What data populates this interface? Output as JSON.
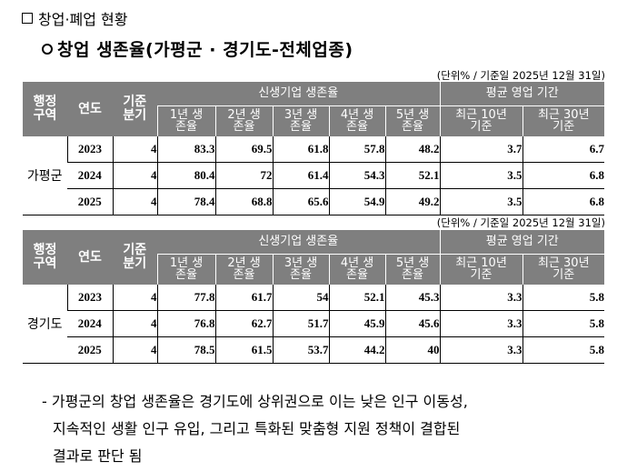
{
  "section_title": "창업·폐업 현황",
  "sub_title": "창업 생존율(가평군 · 경기도-전체업종)",
  "tables": [
    {
      "unit": "(단위% / 기준일 2025년 12월 31일)",
      "headers": {
        "region": "행정\n구역",
        "year": "연도",
        "quarter": "기준\n분기",
        "survival_group": "신생기업 생존율",
        "survival_cols": [
          "1년 생\n존율",
          "2년 생\n존율",
          "3년 생\n존율",
          "4년 생\n존율",
          "5년 생\n존율"
        ],
        "period_group": "평균 영업 기간",
        "period_cols": [
          "최근 10년\n기준",
          "최근 30년\n기준"
        ]
      },
      "region": "가평군",
      "rows": [
        {
          "year": "2023",
          "quarter": "4",
          "s1": "83.3",
          "s2": "69.5",
          "s3": "61.8",
          "s4": "57.8",
          "s5": "48.2",
          "p10": "3.7",
          "p30": "6.7"
        },
        {
          "year": "2024",
          "quarter": "4",
          "s1": "80.4",
          "s2": "72",
          "s3": "61.4",
          "s4": "54.3",
          "s5": "52.1",
          "p10": "3.5",
          "p30": "6.8"
        },
        {
          "year": "2025",
          "quarter": "4",
          "s1": "78.4",
          "s2": "68.8",
          "s3": "65.6",
          "s4": "54.9",
          "s5": "49.2",
          "p10": "3.5",
          "p30": "6.8"
        }
      ]
    },
    {
      "unit": "(단위% / 기준일 2025년 12월 31일)",
      "headers": {
        "region": "행정\n구역",
        "year": "연도",
        "quarter": "기준\n분기",
        "survival_group": "신생기업 생존율",
        "survival_cols": [
          "1년 생\n존율",
          "2년 생\n존율",
          "3년 생\n존율",
          "4년 생\n존율",
          "5년 생\n존율"
        ],
        "period_group": "평균 영업 기간",
        "period_cols": [
          "최근 10년\n기준",
          "최근 30년\n기준"
        ]
      },
      "region": "경기도",
      "rows": [
        {
          "year": "2023",
          "quarter": "4",
          "s1": "77.8",
          "s2": "61.7",
          "s3": "54",
          "s4": "52.1",
          "s5": "45.3",
          "p10": "3.3",
          "p30": "5.8"
        },
        {
          "year": "2024",
          "quarter": "4",
          "s1": "76.8",
          "s2": "62.7",
          "s3": "51.7",
          "s4": "45.9",
          "s5": "45.6",
          "p10": "3.3",
          "p30": "5.8"
        },
        {
          "year": "2025",
          "quarter": "4",
          "s1": "78.5",
          "s2": "61.5",
          "s3": "53.7",
          "s4": "44.2",
          "s5": "40",
          "p10": "3.3",
          "p30": "5.8"
        }
      ]
    }
  ],
  "note": {
    "line1": "- 가평군의 창업 생존율은 경기도에 상위권으로 이는 낮은 인구 이동성,",
    "line2": "지속적인 생활 인구 유입, 그리고 특화된 맞춤형 지원 정책이 결합된",
    "line3": "결과로 판단 됨"
  }
}
